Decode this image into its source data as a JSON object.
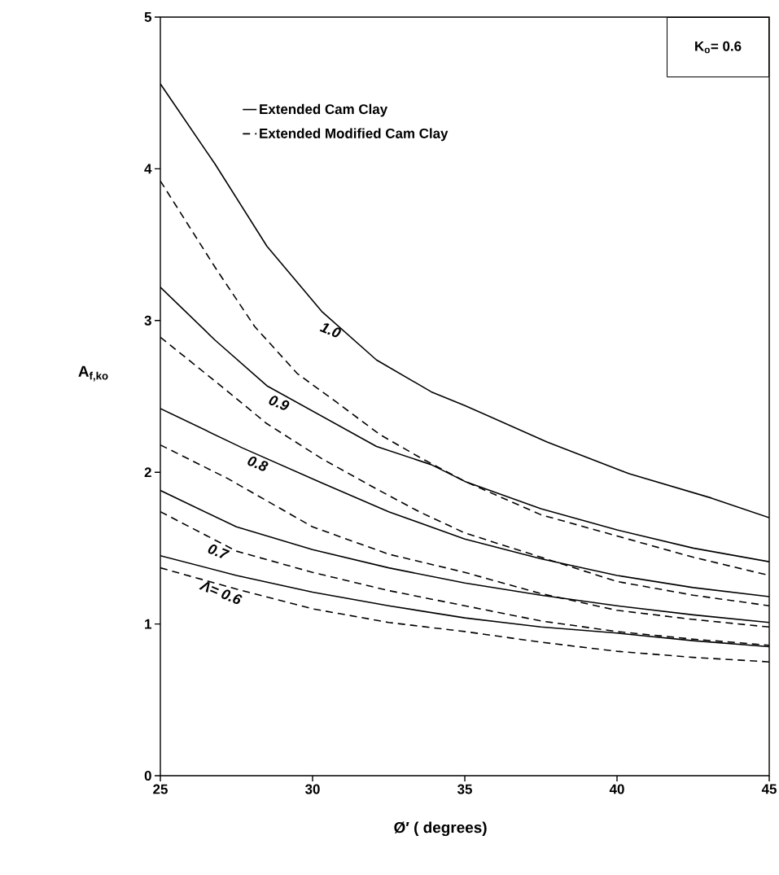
{
  "chart_data": {
    "type": "line",
    "xlabel": "Ø′  ( degrees)",
    "ylabel": "A$_{f,ko}$",
    "xlim": [
      25,
      45
    ],
    "ylim": [
      0,
      5
    ],
    "xticks": [
      25,
      30,
      35,
      40,
      45
    ],
    "yticks": [
      0,
      1,
      2,
      3,
      4,
      5
    ],
    "grid": false,
    "legend": "top",
    "series": [
      {
        "name": "Extended Cam Clay",
        "color": "#000000",
        "line_style": "solid",
        "x": [
          25,
          26.8,
          28.5,
          30.3,
          32.1,
          33.9,
          35,
          37.7,
          40.4,
          43.1,
          45
        ],
        "values": [
          4.56,
          4.03,
          3.49,
          3.06,
          2.74,
          2.53,
          2.44,
          2.2,
          1.99,
          1.83,
          1.7
        ]
      },
      {
        "name": "Extended Modified Cam Clay",
        "color": "#000000",
        "line_style": "dashed",
        "x": [
          25,
          26.8,
          28.1,
          29.5,
          30.8,
          32.2,
          33.5,
          35,
          37.5,
          40,
          42.5,
          45
        ],
        "values": [
          3.92,
          3.35,
          2.96,
          2.65,
          2.46,
          2.25,
          2.1,
          1.94,
          1.72,
          1.58,
          1.44,
          1.32
        ]
      },
      {
        "color": "#000000",
        "line_style": "solid",
        "x": [
          25,
          26.8,
          28.5,
          30.3,
          32.1,
          33.9,
          35,
          37.5,
          40,
          42.5,
          45
        ],
        "values": [
          3.22,
          2.87,
          2.57,
          2.37,
          2.17,
          2.05,
          1.94,
          1.76,
          1.62,
          1.5,
          1.41
        ]
      },
      {
        "color": "#000000",
        "line_style": "dashed",
        "x": [
          25,
          26.8,
          28.5,
          30.3,
          32.1,
          33.5,
          35,
          37.5,
          40,
          42.5,
          45
        ],
        "values": [
          2.89,
          2.6,
          2.32,
          2.09,
          1.89,
          1.74,
          1.6,
          1.44,
          1.28,
          1.19,
          1.12
        ]
      },
      {
        "color": "#000000",
        "line_style": "solid",
        "x": [
          25,
          27.7,
          30.3,
          32.5,
          35,
          37.5,
          40,
          42.5,
          45
        ],
        "values": [
          2.42,
          2.16,
          1.93,
          1.74,
          1.56,
          1.43,
          1.32,
          1.24,
          1.18
        ]
      },
      {
        "color": "#000000",
        "line_style": "dashed",
        "x": [
          25,
          27.2,
          30,
          32.5,
          35,
          37.5,
          40,
          42.5,
          45
        ],
        "values": [
          2.18,
          1.96,
          1.64,
          1.46,
          1.34,
          1.2,
          1.09,
          1.03,
          0.98
        ]
      },
      {
        "color": "#000000",
        "line_style": "solid",
        "x": [
          25,
          27.5,
          30,
          32.5,
          35,
          37.5,
          40,
          42.5,
          45
        ],
        "values": [
          1.88,
          1.64,
          1.49,
          1.37,
          1.27,
          1.19,
          1.12,
          1.06,
          1.01
        ]
      },
      {
        "color": "#000000",
        "line_style": "dashed",
        "x": [
          25,
          27.5,
          30,
          32.5,
          35,
          37.5,
          40,
          42.5,
          45
        ],
        "values": [
          1.74,
          1.48,
          1.34,
          1.22,
          1.12,
          1.02,
          0.95,
          0.9,
          0.86
        ]
      },
      {
        "color": "#000000",
        "line_style": "solid",
        "x": [
          25,
          27.5,
          30,
          32.5,
          35,
          37.5,
          40,
          42.5,
          45
        ],
        "values": [
          1.45,
          1.32,
          1.21,
          1.12,
          1.04,
          0.98,
          0.94,
          0.89,
          0.85
        ]
      },
      {
        "color": "#000000",
        "line_style": "dashed",
        "x": [
          25,
          27.5,
          30,
          32.5,
          35,
          37.5,
          40,
          42.5,
          45
        ],
        "values": [
          1.37,
          1.23,
          1.1,
          1.01,
          0.95,
          0.88,
          0.82,
          0.78,
          0.75
        ]
      }
    ],
    "annotations": [
      {
        "text": "1.0",
        "x": 30.7,
        "y": 2.99
      },
      {
        "text": "0.9",
        "x": 29.0,
        "y": 2.51
      },
      {
        "text": "0.8",
        "x": 28.3,
        "y": 2.11
      },
      {
        "text": "0.7",
        "x": 27.0,
        "y": 1.53
      },
      {
        "text": "Λ= 0.6",
        "x": 27.1,
        "y": 1.26
      },
      "K$_{o}$= 0.6"
    ]
  }
}
